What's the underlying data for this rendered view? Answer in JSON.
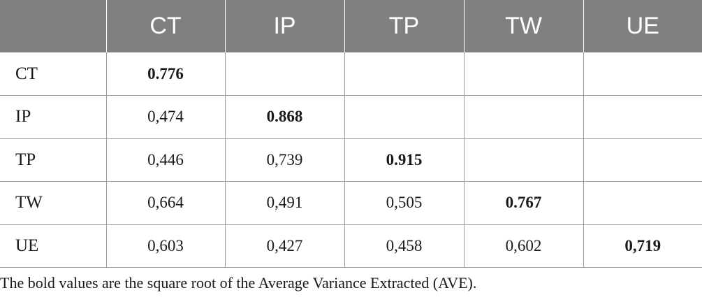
{
  "table": {
    "headers": [
      "",
      "CT",
      "IP",
      "TP",
      "TW",
      "UE"
    ],
    "rows": [
      {
        "label": "CT",
        "cells": [
          "0.776",
          "",
          "",
          "",
          ""
        ]
      },
      {
        "label": "IP",
        "cells": [
          "0,474",
          "0.868",
          "",
          "",
          ""
        ]
      },
      {
        "label": "TP",
        "cells": [
          "0,446",
          "0,739",
          "0.915",
          "",
          ""
        ]
      },
      {
        "label": "TW",
        "cells": [
          "0,664",
          "0,491",
          "0,505",
          "0.767",
          ""
        ]
      },
      {
        "label": "UE",
        "cells": [
          "0,603",
          "0,427",
          "0,458",
          "0,602",
          "0,719"
        ]
      }
    ]
  },
  "footnote": "The bold values are the square root of the Average Variance Extracted (AVE)."
}
